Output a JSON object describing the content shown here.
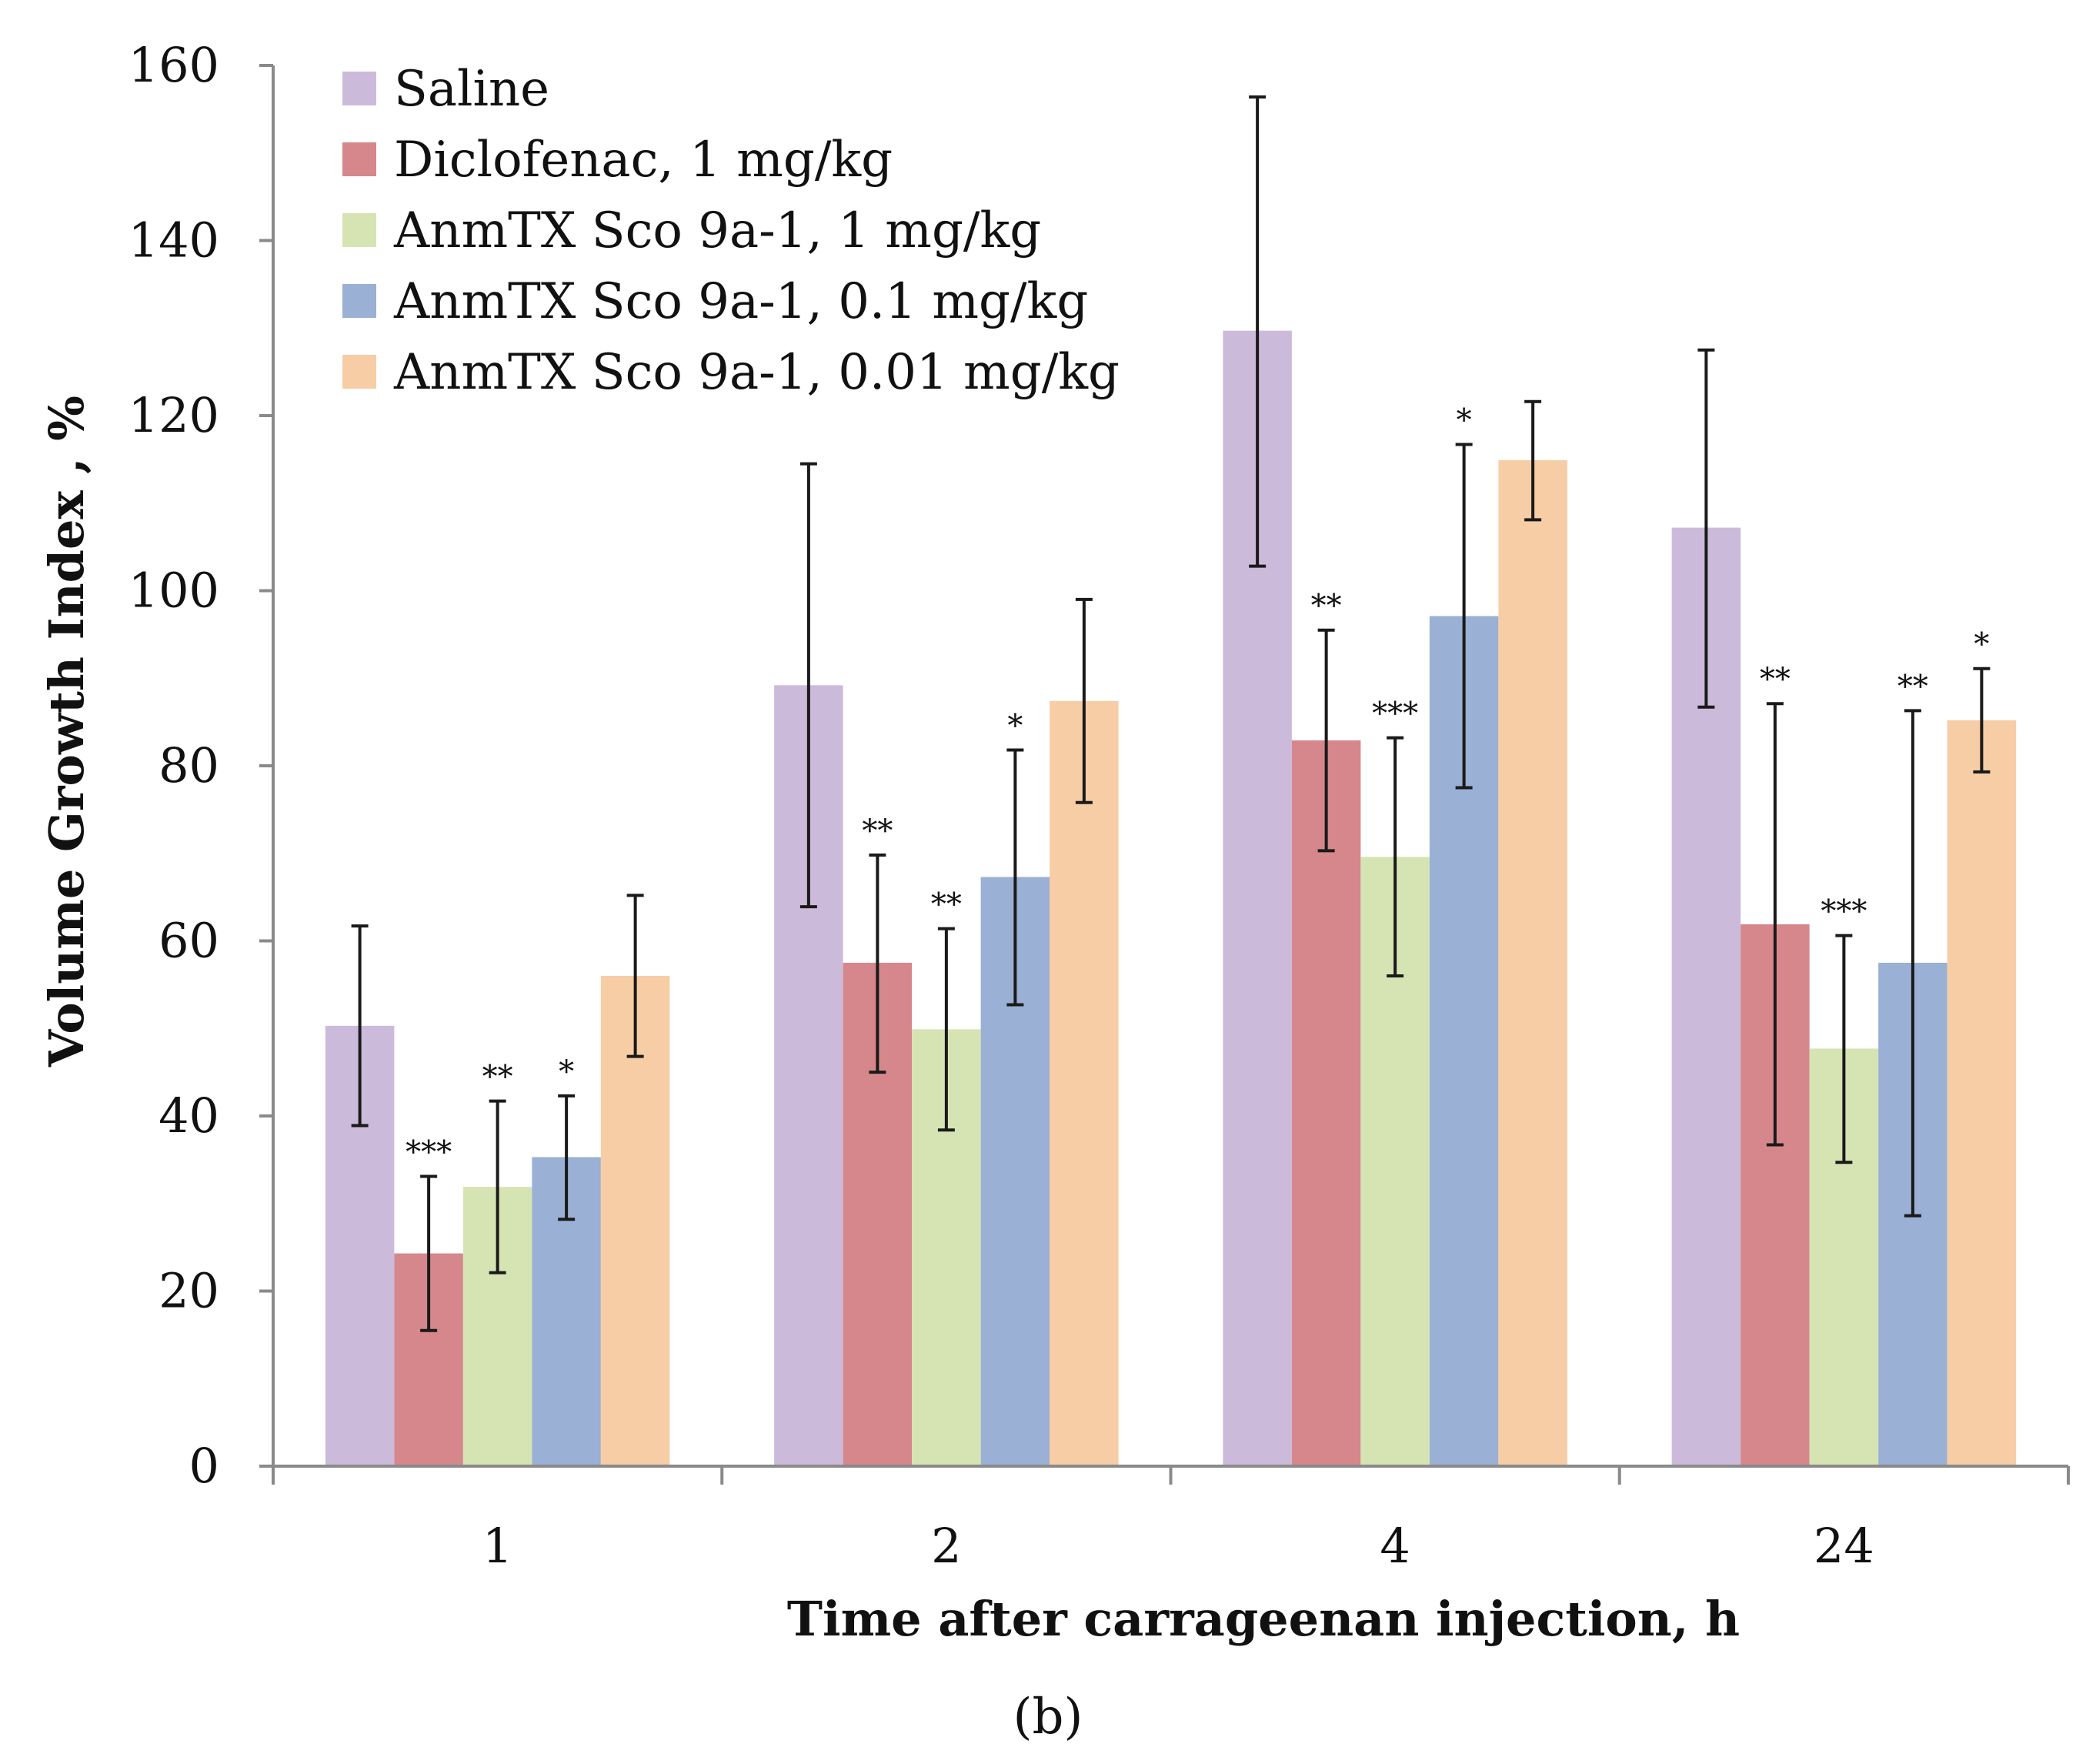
{
  "chart_data": {
    "type": "bar",
    "title": "",
    "xlabel": "Time after carrageenan injection, h",
    "ylabel": "Volume Growth Index , %",
    "panel_label": "(b)",
    "categories": [
      "1",
      "2",
      "4",
      "24"
    ],
    "ylim": [
      0,
      160
    ],
    "yticks": [
      0,
      20,
      40,
      60,
      80,
      100,
      120,
      140,
      160
    ],
    "grid": false,
    "legend_position": "top-left",
    "series": [
      {
        "name": "Saline",
        "color": "#ccbadb",
        "values": [
          50.3,
          89.2,
          129.7,
          107.2
        ],
        "error_low": [
          38.9,
          63.9,
          102.8,
          86.7
        ],
        "error_high": [
          61.7,
          114.5,
          156.4,
          127.5
        ],
        "significance": [
          "",
          "",
          "",
          ""
        ]
      },
      {
        "name": "Diclofenac, 1 mg/kg",
        "color": "#d5878c",
        "values": [
          24.3,
          57.5,
          82.9,
          61.9
        ],
        "error_low": [
          15.5,
          45.0,
          70.3,
          36.7
        ],
        "error_high": [
          33.1,
          69.8,
          95.5,
          87.1
        ],
        "significance": [
          "***",
          "**",
          "**",
          "**"
        ]
      },
      {
        "name": "AnmTX Sco 9a-1, 1 mg/kg",
        "color": "#d6e4b3",
        "values": [
          31.9,
          49.9,
          69.6,
          47.7
        ],
        "error_low": [
          22.1,
          38.4,
          56.0,
          34.7
        ],
        "error_high": [
          41.7,
          61.4,
          83.2,
          60.6
        ],
        "significance": [
          "**",
          "**",
          "***",
          "***"
        ]
      },
      {
        "name": "AnmTX Sco 9a-1, 0.1 mg/kg",
        "color": "#9ab0d4",
        "values": [
          35.3,
          67.3,
          97.1,
          57.5
        ],
        "error_low": [
          28.2,
          52.7,
          77.5,
          28.6
        ],
        "error_high": [
          42.3,
          81.8,
          116.7,
          86.3
        ],
        "significance": [
          "*",
          "*",
          "*",
          "**"
        ]
      },
      {
        "name": "AnmTX Sco 9a-1, 0.01 mg/kg",
        "color": "#f7cda5",
        "values": [
          56.0,
          87.4,
          114.9,
          85.2
        ],
        "error_low": [
          46.8,
          75.8,
          108.1,
          79.3
        ],
        "error_high": [
          65.2,
          99.0,
          121.6,
          91.1
        ],
        "significance": [
          "",
          "",
          "",
          "*"
        ]
      }
    ]
  }
}
